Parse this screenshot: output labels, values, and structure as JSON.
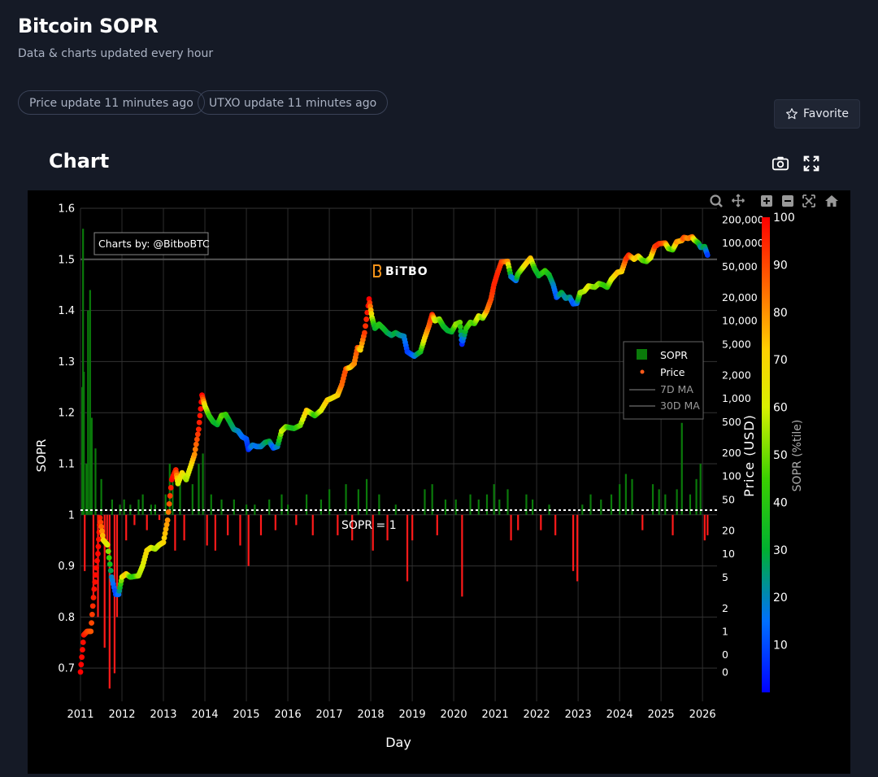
{
  "page": {
    "title": "Bitcoin SOPR",
    "subtitle": "Data & charts updated every hour",
    "badges": [
      "Price update 11 minutes ago",
      "UTXO update 11 minutes ago"
    ],
    "favorite_label": "Favorite",
    "chart_heading": "Chart",
    "icons": [
      "star-icon",
      "camera-icon",
      "fullscreen-icon",
      "zoom-icon",
      "pan-icon",
      "zoom-in-icon",
      "zoom-out-icon",
      "autoscale-icon",
      "home-icon"
    ]
  },
  "chart_data": {
    "type": "bar",
    "xlabel": "Day",
    "ylabel": "SOPR",
    "y2label": "Price (USD)",
    "colorbar_label": "SOPR (%tile)",
    "watermark": "BiTBO",
    "credit": "Charts by: @BitboBTC",
    "reference_line": {
      "y": 1,
      "label": "SOPR = 1"
    },
    "xlim": [
      2011,
      2026.35
    ],
    "ylim": [
      0.635,
      1.6
    ],
    "x_ticks": [
      "2011",
      "2012",
      "2013",
      "2014",
      "2015",
      "2016",
      "2017",
      "2018",
      "2019",
      "2020",
      "2021",
      "2022",
      "2023",
      "2024",
      "2025",
      "2026"
    ],
    "y_ticks": [
      "0.7",
      "0.8",
      "0.9",
      "1",
      "1.1",
      "1.2",
      "1.3",
      "1.4",
      "1.5",
      "1.6"
    ],
    "price_ticks": [
      {
        "v": 0.3,
        "label": "0"
      },
      {
        "v": 0.5,
        "label": "0"
      },
      {
        "v": 1,
        "label": "1"
      },
      {
        "v": 2,
        "label": "2"
      },
      {
        "v": 5,
        "label": "5"
      },
      {
        "v": 10,
        "label": "10"
      },
      {
        "v": 20,
        "label": "20"
      },
      {
        "v": 50,
        "label": "50"
      },
      {
        "v": 100,
        "label": "100"
      },
      {
        "v": 200,
        "label": "200"
      },
      {
        "v": 500,
        "label": "500"
      },
      {
        "v": 1000,
        "label": "1,000"
      },
      {
        "v": 2000,
        "label": "2,000"
      },
      {
        "v": 5000,
        "label": "5,000"
      },
      {
        "v": 10000,
        "label": "10,000"
      },
      {
        "v": 20000,
        "label": "20,000"
      },
      {
        "v": 50000,
        "label": "50,000"
      },
      {
        "v": 100000,
        "label": "100,000"
      },
      {
        "v": 200000,
        "label": "200,000"
      }
    ],
    "colorbar_ticks": [
      "10",
      "20",
      "30",
      "40",
      "50",
      "60",
      "70",
      "80",
      "90",
      "100"
    ],
    "legend": [
      "SOPR",
      "Price",
      "7D MA",
      "30D MA"
    ],
    "grid": true,
    "legend_position": "right",
    "colors": {
      "positive": "#0a7a0a",
      "negative": "#ff1a1a",
      "grid": "#2d2d2d"
    },
    "price_series": [
      [
        2011.0,
        0.3,
        100
      ],
      [
        2011.08,
        0.9,
        98
      ],
      [
        2011.16,
        1.0,
        92
      ],
      [
        2011.25,
        1.0,
        88
      ],
      [
        2011.33,
        3.5,
        98
      ],
      [
        2011.42,
        10.0,
        99
      ],
      [
        2011.47,
        29.0,
        96
      ],
      [
        2011.55,
        15.0,
        70
      ],
      [
        2011.65,
        13.0,
        60
      ],
      [
        2011.75,
        5.0,
        20
      ],
      [
        2011.85,
        3.0,
        8
      ],
      [
        2011.92,
        3.0,
        15
      ],
      [
        2012.0,
        5.0,
        60
      ],
      [
        2012.1,
        5.5,
        75
      ],
      [
        2012.2,
        5.0,
        45
      ],
      [
        2012.3,
        5.1,
        40
      ],
      [
        2012.4,
        5.2,
        55
      ],
      [
        2012.5,
        7.0,
        60
      ],
      [
        2012.6,
        11.0,
        70
      ],
      [
        2012.7,
        12.0,
        65
      ],
      [
        2012.8,
        11.5,
        55
      ],
      [
        2012.9,
        13.0,
        60
      ],
      [
        2013.0,
        14.0,
        70
      ],
      [
        2013.1,
        27.0,
        80
      ],
      [
        2013.2,
        90.0,
        100
      ],
      [
        2013.3,
        120.0,
        95
      ],
      [
        2013.35,
        80.0,
        60
      ],
      [
        2013.45,
        110.0,
        70
      ],
      [
        2013.55,
        90.0,
        55
      ],
      [
        2013.65,
        130.0,
        65
      ],
      [
        2013.75,
        190.0,
        80
      ],
      [
        2013.85,
        400.0,
        95
      ],
      [
        2013.93,
        1100,
        100
      ],
      [
        2014.0,
        800,
        65
      ],
      [
        2014.1,
        600,
        45
      ],
      [
        2014.2,
        500,
        35
      ],
      [
        2014.3,
        460,
        30
      ],
      [
        2014.4,
        600,
        50
      ],
      [
        2014.5,
        620,
        45
      ],
      [
        2014.6,
        500,
        30
      ],
      [
        2014.7,
        400,
        25
      ],
      [
        2014.8,
        380,
        20
      ],
      [
        2014.9,
        320,
        15
      ],
      [
        2015.0,
        300,
        12
      ],
      [
        2015.05,
        220,
        5
      ],
      [
        2015.15,
        250,
        20
      ],
      [
        2015.25,
        240,
        15
      ],
      [
        2015.35,
        240,
        18
      ],
      [
        2015.45,
        270,
        25
      ],
      [
        2015.55,
        280,
        30
      ],
      [
        2015.65,
        230,
        10
      ],
      [
        2015.75,
        240,
        20
      ],
      [
        2015.85,
        380,
        60
      ],
      [
        2015.95,
        430,
        55
      ],
      [
        2016.05,
        420,
        40
      ],
      [
        2016.15,
        410,
        35
      ],
      [
        2016.3,
        450,
        50
      ],
      [
        2016.45,
        700,
        75
      ],
      [
        2016.55,
        650,
        60
      ],
      [
        2016.65,
        600,
        40
      ],
      [
        2016.8,
        700,
        60
      ],
      [
        2016.95,
        950,
        75
      ],
      [
        2017.05,
        1000,
        65
      ],
      [
        2017.2,
        1100,
        70
      ],
      [
        2017.3,
        1500,
        85
      ],
      [
        2017.4,
        2400,
        90
      ],
      [
        2017.5,
        2500,
        70
      ],
      [
        2017.6,
        2800,
        80
      ],
      [
        2017.68,
        4500,
        90
      ],
      [
        2017.75,
        4200,
        70
      ],
      [
        2017.85,
        7000,
        92
      ],
      [
        2017.96,
        19000,
        100
      ],
      [
        2018.03,
        11000,
        60
      ],
      [
        2018.1,
        8000,
        30
      ],
      [
        2018.2,
        9000,
        40
      ],
      [
        2018.3,
        8000,
        35
      ],
      [
        2018.4,
        7000,
        30
      ],
      [
        2018.5,
        6500,
        25
      ],
      [
        2018.6,
        7000,
        30
      ],
      [
        2018.7,
        6500,
        25
      ],
      [
        2018.8,
        6300,
        20
      ],
      [
        2018.88,
        4000,
        8
      ],
      [
        2018.97,
        3700,
        10
      ],
      [
        2019.05,
        3500,
        15
      ],
      [
        2019.2,
        4000,
        35
      ],
      [
        2019.3,
        6000,
        70
      ],
      [
        2019.4,
        8500,
        85
      ],
      [
        2019.48,
        12000,
        95
      ],
      [
        2019.55,
        10000,
        60
      ],
      [
        2019.65,
        10500,
        55
      ],
      [
        2019.75,
        8500,
        35
      ],
      [
        2019.85,
        7500,
        30
      ],
      [
        2019.95,
        7200,
        30
      ],
      [
        2020.05,
        9000,
        55
      ],
      [
        2020.15,
        9500,
        50
      ],
      [
        2020.2,
        5000,
        5
      ],
      [
        2020.3,
        8000,
        40
      ],
      [
        2020.4,
        9500,
        50
      ],
      [
        2020.5,
        9200,
        45
      ],
      [
        2020.6,
        11500,
        65
      ],
      [
        2020.7,
        10800,
        50
      ],
      [
        2020.8,
        13500,
        80
      ],
      [
        2020.9,
        19000,
        90
      ],
      [
        2020.97,
        29000,
        95
      ],
      [
        2021.05,
        40000,
        95
      ],
      [
        2021.15,
        57000,
        92
      ],
      [
        2021.3,
        58000,
        80
      ],
      [
        2021.38,
        37000,
        20
      ],
      [
        2021.5,
        33000,
        15
      ],
      [
        2021.55,
        40000,
        40
      ],
      [
        2021.65,
        47000,
        55
      ],
      [
        2021.75,
        55000,
        70
      ],
      [
        2021.85,
        64000,
        75
      ],
      [
        2021.95,
        47000,
        40
      ],
      [
        2022.05,
        38000,
        30
      ],
      [
        2022.2,
        44000,
        45
      ],
      [
        2022.3,
        39000,
        35
      ],
      [
        2022.4,
        29000,
        20
      ],
      [
        2022.48,
        20000,
        10
      ],
      [
        2022.6,
        23000,
        30
      ],
      [
        2022.7,
        19500,
        20
      ],
      [
        2022.8,
        20000,
        25
      ],
      [
        2022.88,
        16500,
        10
      ],
      [
        2022.97,
        16800,
        15
      ],
      [
        2023.05,
        23000,
        55
      ],
      [
        2023.15,
        24000,
        55
      ],
      [
        2023.25,
        28000,
        65
      ],
      [
        2023.4,
        27000,
        50
      ],
      [
        2023.5,
        30000,
        55
      ],
      [
        2023.6,
        29000,
        45
      ],
      [
        2023.7,
        27000,
        40
      ],
      [
        2023.8,
        34000,
        60
      ],
      [
        2023.95,
        42000,
        75
      ],
      [
        2024.05,
        43000,
        70
      ],
      [
        2024.15,
        62000,
        90
      ],
      [
        2024.22,
        70000,
        95
      ],
      [
        2024.35,
        62000,
        70
      ],
      [
        2024.45,
        68000,
        75
      ],
      [
        2024.55,
        60000,
        50
      ],
      [
        2024.65,
        58000,
        45
      ],
      [
        2024.75,
        65000,
        60
      ],
      [
        2024.85,
        90000,
        90
      ],
      [
        2024.95,
        98000,
        95
      ],
      [
        2025.1,
        100000,
        85
      ],
      [
        2025.18,
        85000,
        55
      ],
      [
        2025.28,
        82000,
        45
      ],
      [
        2025.38,
        104000,
        80
      ],
      [
        2025.5,
        108000,
        75
      ],
      [
        2025.55,
        118000,
        90
      ],
      [
        2025.65,
        115000,
        80
      ],
      [
        2025.75,
        120000,
        85
      ],
      [
        2025.8,
        110000,
        65
      ],
      [
        2025.9,
        100000,
        40
      ],
      [
        2025.96,
        88000,
        20
      ],
      [
        2026.05,
        90000,
        30
      ],
      [
        2026.12,
        70000,
        8
      ]
    ],
    "sopr_bars": [
      [
        2011.04,
        1.25
      ],
      [
        2011.06,
        1.56
      ],
      [
        2011.08,
        1.28
      ],
      [
        2011.1,
        0.89
      ],
      [
        2011.14,
        1.1
      ],
      [
        2011.18,
        1.4
      ],
      [
        2011.23,
        1.44
      ],
      [
        2011.27,
        1.19
      ],
      [
        2011.31,
        0.84
      ],
      [
        2011.36,
        1.13
      ],
      [
        2011.42,
        0.8
      ],
      [
        2011.5,
        1.07
      ],
      [
        2011.58,
        0.74
      ],
      [
        2011.64,
        0.95
      ],
      [
        2011.7,
        0.66
      ],
      [
        2011.76,
        1.03
      ],
      [
        2011.82,
        0.69
      ],
      [
        2011.88,
        0.8
      ],
      [
        2011.95,
        1.02
      ],
      [
        2012.05,
        1.03
      ],
      [
        2012.1,
        0.95
      ],
      [
        2012.2,
        1.02
      ],
      [
        2012.3,
        0.98
      ],
      [
        2012.4,
        1.03
      ],
      [
        2012.5,
        1.04
      ],
      [
        2012.6,
        0.97
      ],
      [
        2012.7,
        1.02
      ],
      [
        2012.8,
        1.02
      ],
      [
        2012.9,
        0.99
      ],
      [
        2013.05,
        1.04
      ],
      [
        2013.15,
        1.1
      ],
      [
        2013.22,
        1.08
      ],
      [
        2013.28,
        0.93
      ],
      [
        2013.4,
        1.07
      ],
      [
        2013.5,
        0.95
      ],
      [
        2013.7,
        1.06
      ],
      [
        2013.85,
        1.1
      ],
      [
        2013.95,
        1.12
      ],
      [
        2014.05,
        0.94
      ],
      [
        2014.15,
        1.04
      ],
      [
        2014.25,
        0.93
      ],
      [
        2014.4,
        1.03
      ],
      [
        2014.55,
        0.96
      ],
      [
        2014.7,
        1.03
      ],
      [
        2014.85,
        0.94
      ],
      [
        2015.0,
        1.02
      ],
      [
        2015.05,
        0.9
      ],
      [
        2015.2,
        1.02
      ],
      [
        2015.35,
        0.96
      ],
      [
        2015.55,
        1.03
      ],
      [
        2015.7,
        0.97
      ],
      [
        2015.85,
        1.04
      ],
      [
        2016.0,
        1.02
      ],
      [
        2016.2,
        0.98
      ],
      [
        2016.45,
        1.04
      ],
      [
        2016.6,
        0.96
      ],
      [
        2016.8,
        1.03
      ],
      [
        2017.0,
        1.05
      ],
      [
        2017.2,
        0.96
      ],
      [
        2017.4,
        1.06
      ],
      [
        2017.55,
        0.95
      ],
      [
        2017.7,
        1.05
      ],
      [
        2017.9,
        1.07
      ],
      [
        2018.05,
        0.93
      ],
      [
        2018.2,
        1.04
      ],
      [
        2018.4,
        0.95
      ],
      [
        2018.6,
        1.02
      ],
      [
        2018.88,
        0.87
      ],
      [
        2019.0,
        0.95
      ],
      [
        2019.3,
        1.05
      ],
      [
        2019.48,
        1.06
      ],
      [
        2019.6,
        0.96
      ],
      [
        2019.8,
        1.03
      ],
      [
        2020.05,
        1.03
      ],
      [
        2020.2,
        0.84
      ],
      [
        2020.4,
        1.04
      ],
      [
        2020.6,
        1.03
      ],
      [
        2020.8,
        1.04
      ],
      [
        2020.97,
        1.06
      ],
      [
        2021.1,
        1.03
      ],
      [
        2021.3,
        1.05
      ],
      [
        2021.38,
        0.95
      ],
      [
        2021.55,
        0.97
      ],
      [
        2021.75,
        1.04
      ],
      [
        2021.9,
        1.03
      ],
      [
        2022.1,
        0.97
      ],
      [
        2022.3,
        1.02
      ],
      [
        2022.45,
        0.96
      ],
      [
        2022.88,
        0.89
      ],
      [
        2022.98,
        0.87
      ],
      [
        2023.1,
        1.02
      ],
      [
        2023.3,
        1.04
      ],
      [
        2023.55,
        1.03
      ],
      [
        2023.8,
        1.04
      ],
      [
        2024.0,
        1.06
      ],
      [
        2024.15,
        1.08
      ],
      [
        2024.3,
        1.07
      ],
      [
        2024.55,
        0.97
      ],
      [
        2024.8,
        1.06
      ],
      [
        2024.95,
        1.05
      ],
      [
        2025.1,
        1.04
      ],
      [
        2025.28,
        0.96
      ],
      [
        2025.38,
        1.05
      ],
      [
        2025.5,
        1.18
      ],
      [
        2025.7,
        1.04
      ],
      [
        2025.85,
        1.07
      ],
      [
        2025.95,
        1.1
      ],
      [
        2026.05,
        0.95
      ],
      [
        2026.12,
        0.96
      ]
    ]
  }
}
